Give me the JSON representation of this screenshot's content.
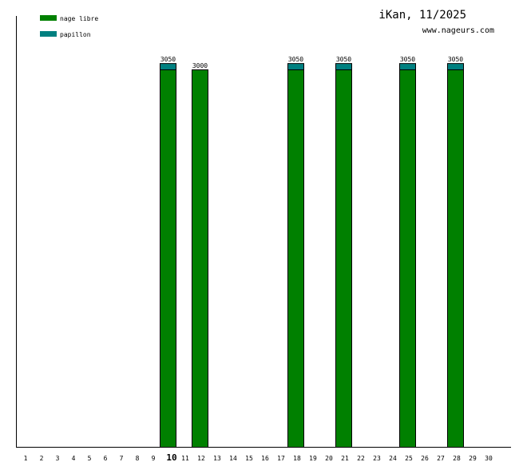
{
  "chart_data": {
    "type": "bar",
    "stacked": true,
    "title": "iKan, 11/2025",
    "subtitle": "www.nageurs.com",
    "categories": [
      "1",
      "2",
      "3",
      "4",
      "5",
      "6",
      "7",
      "8",
      "9",
      "10",
      "11",
      "12",
      "13",
      "14",
      "15",
      "16",
      "17",
      "18",
      "19",
      "20",
      "21",
      "22",
      "23",
      "24",
      "25",
      "26",
      "27",
      "28",
      "29",
      "30"
    ],
    "highlighted_category": "10",
    "series": [
      {
        "name": "nage libre",
        "color": "#008000",
        "values": [
          0,
          0,
          0,
          0,
          0,
          0,
          0,
          0,
          0,
          3000,
          0,
          3000,
          0,
          0,
          0,
          0,
          0,
          3000,
          0,
          0,
          3000,
          0,
          0,
          0,
          3000,
          0,
          0,
          3000,
          0,
          0
        ]
      },
      {
        "name": "papillon",
        "color": "#008080",
        "values": [
          0,
          0,
          0,
          0,
          0,
          0,
          0,
          0,
          0,
          50,
          0,
          0,
          0,
          0,
          0,
          0,
          0,
          50,
          0,
          0,
          50,
          0,
          0,
          0,
          50,
          0,
          0,
          50,
          0,
          0
        ]
      }
    ],
    "totals_labels": [
      "",
      "",
      "",
      "",
      "",
      "",
      "",
      "",
      "",
      "3050",
      "",
      "3000",
      "",
      "",
      "",
      "",
      "",
      "3050",
      "",
      "",
      "3050",
      "",
      "",
      "",
      "3050",
      "",
      "",
      "3050",
      "",
      ""
    ],
    "ylim": [
      0,
      3425
    ],
    "grid": false,
    "legend_position": "top-left"
  }
}
